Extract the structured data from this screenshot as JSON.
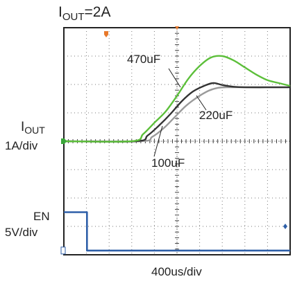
{
  "title": {
    "main": "I",
    "sub": "OUT",
    "suffix": "=2A"
  },
  "left_labels": {
    "iout_main": "I",
    "iout_sub": "OUT",
    "iout_scale": "1A/div",
    "en_name": "EN",
    "en_scale": "5V/div"
  },
  "xaxis_label": "400us/div",
  "chart_data": {
    "type": "line",
    "title": "IOUT=2A",
    "xlabel": "400us/div",
    "grid": true,
    "x_divisions": 10,
    "y_divisions": 8,
    "ylim_div": [
      0,
      8
    ],
    "series": [
      {
        "name": "470uF",
        "channel": "IOUT",
        "color": "#5cbf3a",
        "x_div": [
          0,
          3.0,
          3.5,
          4.0,
          4.5,
          5.0,
          5.5,
          6.0,
          6.5,
          7.0,
          7.5,
          8.0,
          8.5,
          9.0,
          9.5,
          10
        ],
        "y_div": [
          4.0,
          4.0,
          4.25,
          4.65,
          5.05,
          5.6,
          6.2,
          6.65,
          6.95,
          7.0,
          6.85,
          6.6,
          6.35,
          6.15,
          6.05,
          5.95
        ]
      },
      {
        "name": "220uF",
        "channel": "IOUT",
        "color": "#333333",
        "x_div": [
          0,
          3.2,
          3.7,
          4.2,
          4.7,
          5.2,
          5.7,
          6.2,
          6.6,
          7.0,
          7.5,
          8.0,
          9.0,
          10
        ],
        "y_div": [
          4.0,
          4.0,
          4.2,
          4.55,
          4.95,
          5.4,
          5.75,
          5.95,
          6.05,
          5.98,
          5.92,
          5.9,
          5.9,
          5.9
        ]
      },
      {
        "name": "100uF",
        "channel": "IOUT",
        "color": "#9a9a9a",
        "x_div": [
          0,
          3.4,
          3.9,
          4.4,
          4.9,
          5.4,
          5.9,
          6.4,
          6.8,
          7.2,
          8.0,
          9.0,
          10
        ],
        "y_div": [
          4.0,
          4.0,
          4.15,
          4.45,
          4.85,
          5.25,
          5.55,
          5.78,
          5.88,
          5.9,
          5.9,
          5.9,
          5.9
        ]
      },
      {
        "name": "EN",
        "channel": "EN",
        "color": "#2e5fa8",
        "x_div": [
          0,
          1.02,
          1.02,
          10
        ],
        "y_div": [
          1.5,
          1.5,
          0.15,
          0.15
        ]
      }
    ],
    "annotations": [
      "470uF",
      "220uF",
      "100uF"
    ]
  },
  "colors": {
    "grid_border": "#222222",
    "grid_dots": "#777777",
    "marker_orange": "#e8792b",
    "ch1_marker": "#3aa63a",
    "ch2_marker": "#2e5fa8"
  }
}
